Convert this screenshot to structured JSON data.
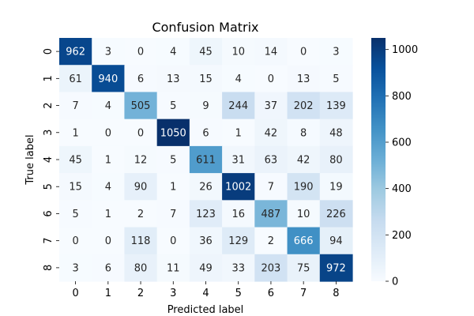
{
  "chart_data": {
    "type": "heatmap",
    "title": "Confusion Matrix",
    "xlabel": "Predicted label",
    "ylabel": "True label",
    "x_categories": [
      "0",
      "1",
      "2",
      "3",
      "4",
      "5",
      "6",
      "7",
      "8"
    ],
    "y_categories": [
      "0",
      "1",
      "2",
      "3",
      "4",
      "5",
      "6",
      "7",
      "8"
    ],
    "values": [
      [
        962,
        3,
        0,
        4,
        45,
        10,
        14,
        0,
        3
      ],
      [
        61,
        940,
        6,
        13,
        15,
        4,
        0,
        13,
        5
      ],
      [
        7,
        4,
        505,
        5,
        9,
        244,
        37,
        202,
        139
      ],
      [
        1,
        0,
        0,
        1050,
        6,
        1,
        42,
        8,
        48
      ],
      [
        45,
        1,
        12,
        5,
        611,
        31,
        63,
        42,
        80
      ],
      [
        15,
        4,
        90,
        1,
        26,
        1002,
        7,
        190,
        19
      ],
      [
        5,
        1,
        2,
        7,
        123,
        16,
        487,
        10,
        226
      ],
      [
        0,
        0,
        118,
        0,
        36,
        129,
        2,
        666,
        94
      ],
      [
        3,
        6,
        80,
        11,
        49,
        33,
        203,
        75,
        972
      ]
    ],
    "colorbar": {
      "colormap": "Blues",
      "vmin": 0,
      "vmax": 1050,
      "ticks": [
        0,
        200,
        400,
        600,
        800,
        1000
      ]
    }
  }
}
